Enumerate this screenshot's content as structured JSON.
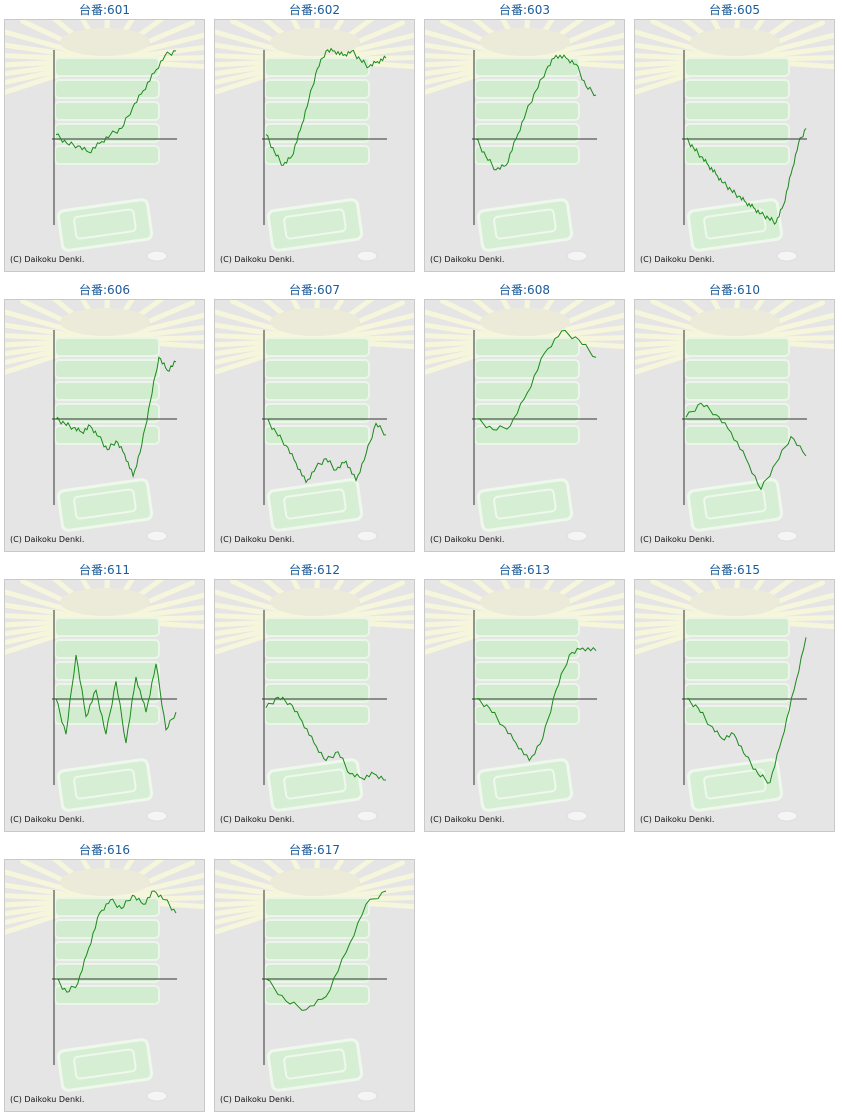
{
  "copyright": "(C) Daikoku Denki.",
  "colors": {
    "line": "#1a8a1a",
    "axis": "#333333",
    "title": "#1a5a9a",
    "background": "#e5e5e5"
  },
  "chart_data": [
    {
      "type": "line",
      "title": "台番:601",
      "y": [
        0.05,
        -0.05,
        -0.08,
        -0.15,
        -0.05,
        0.05,
        0.12,
        0.35,
        0.55,
        0.75,
        0.95,
        1.0
      ]
    },
    {
      "type": "line",
      "title": "台番:602",
      "y": [
        0.05,
        -0.15,
        -0.3,
        -0.2,
        0.1,
        0.45,
        0.8,
        1.0,
        1.0,
        0.95,
        1.0,
        0.9,
        0.82,
        0.88,
        0.92
      ]
    },
    {
      "type": "line",
      "title": "台番:603",
      "y": [
        0.0,
        -0.2,
        -0.35,
        -0.3,
        0.0,
        0.3,
        0.55,
        0.78,
        0.95,
        0.92,
        0.85,
        0.6,
        0.5
      ]
    },
    {
      "type": "line",
      "title": "台番:605",
      "y": [
        0.0,
        -0.1,
        -0.2,
        -0.3,
        -0.4,
        -0.5,
        -0.58,
        -0.65,
        -0.72,
        -0.78,
        -0.85,
        -0.9,
        -0.95,
        -0.75,
        -0.4,
        -0.05,
        0.12
      ]
    },
    {
      "type": "line",
      "title": "台番:606",
      "y": [
        0.0,
        -0.05,
        -0.1,
        -0.15,
        -0.08,
        -0.2,
        -0.35,
        -0.25,
        -0.4,
        -0.65,
        -0.3,
        0.2,
        0.7,
        0.55,
        0.65
      ]
    },
    {
      "type": "line",
      "title": "台番:607",
      "y": [
        0.0,
        -0.15,
        -0.3,
        -0.5,
        -0.72,
        -0.55,
        -0.45,
        -0.58,
        -0.48,
        -0.7,
        -0.4,
        -0.05,
        -0.18
      ]
    },
    {
      "type": "line",
      "title": "台番:608",
      "y": [
        0.0,
        -0.12,
        -0.08,
        0.3,
        0.75,
        1.0,
        0.9,
        0.7
      ]
    },
    {
      "type": "line",
      "title": "台番:610",
      "y": [
        0.02,
        0.18,
        0.05,
        -0.15,
        -0.45,
        -0.8,
        -0.5,
        -0.2,
        -0.42
      ]
    },
    {
      "type": "line",
      "title": "台番:611",
      "y": [
        0.0,
        -0.4,
        0.5,
        -0.2,
        0.1,
        -0.4,
        0.2,
        -0.5,
        0.25,
        -0.15,
        0.4,
        -0.35,
        -0.15
      ]
    },
    {
      "type": "line",
      "title": "台番:612",
      "y": [
        -0.1,
        0.02,
        -0.05,
        -0.25,
        -0.5,
        -0.7,
        -0.6,
        -0.85,
        -0.9,
        -0.85,
        -0.92
      ]
    },
    {
      "type": "line",
      "title": "台番:613",
      "y": [
        0.0,
        -0.1,
        -0.3,
        -0.5,
        -0.7,
        -0.45,
        0.1,
        0.5,
        0.58,
        0.55
      ]
    },
    {
      "type": "line",
      "title": "台番:615",
      "y": [
        0.0,
        -0.1,
        -0.3,
        -0.45,
        -0.4,
        -0.65,
        -0.85,
        -0.95,
        -0.45,
        0.1,
        0.7
      ]
    },
    {
      "type": "line",
      "title": "台番:616",
      "y": [
        0.0,
        -0.15,
        -0.05,
        0.35,
        0.75,
        0.9,
        0.8,
        0.95,
        0.85,
        1.0,
        0.9,
        0.75
      ]
    },
    {
      "type": "line",
      "title": "台番:617",
      "y": [
        0.0,
        -0.25,
        -0.35,
        -0.2,
        0.3,
        0.85,
        1.0
      ]
    }
  ]
}
